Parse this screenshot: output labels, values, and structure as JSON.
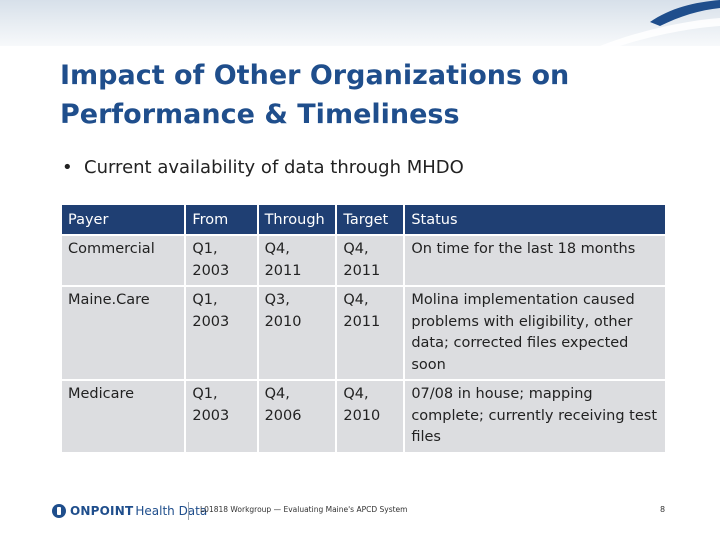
{
  "slide": {
    "title_line1": "Impact of Other Organizations on",
    "title_line2": "Performance & Timeliness",
    "bullet": "Current availability of data through MHDO"
  },
  "table": {
    "headers": [
      "Payer",
      "From",
      "Through",
      "Target",
      "Status"
    ],
    "rows": [
      [
        "Commercial",
        "Q1, 2003",
        "Q4, 2011",
        "Q4, 2011",
        "On time for the last 18 months"
      ],
      [
        "Maine.Care",
        "Q1, 2003",
        "Q3, 2010",
        "Q4, 2011",
        "Molina implementation caused problems with eligibility, other data; corrected files expected soon"
      ],
      [
        "Medicare",
        "Q1, 2003",
        "Q4, 2006",
        "Q4, 2010",
        "07/08 in house; mapping complete; currently receiving test files"
      ]
    ]
  },
  "footer": {
    "logo_bold": "ONPOINT",
    "logo_rest": "Health Data",
    "caption": "L01818 Workgroup — Evaluating Maine's APCD System",
    "page_number": "8"
  },
  "colors": {
    "title": "#1f4e8c",
    "header_fill": "#1f3f73",
    "cell_fill": "#dcdde0"
  }
}
